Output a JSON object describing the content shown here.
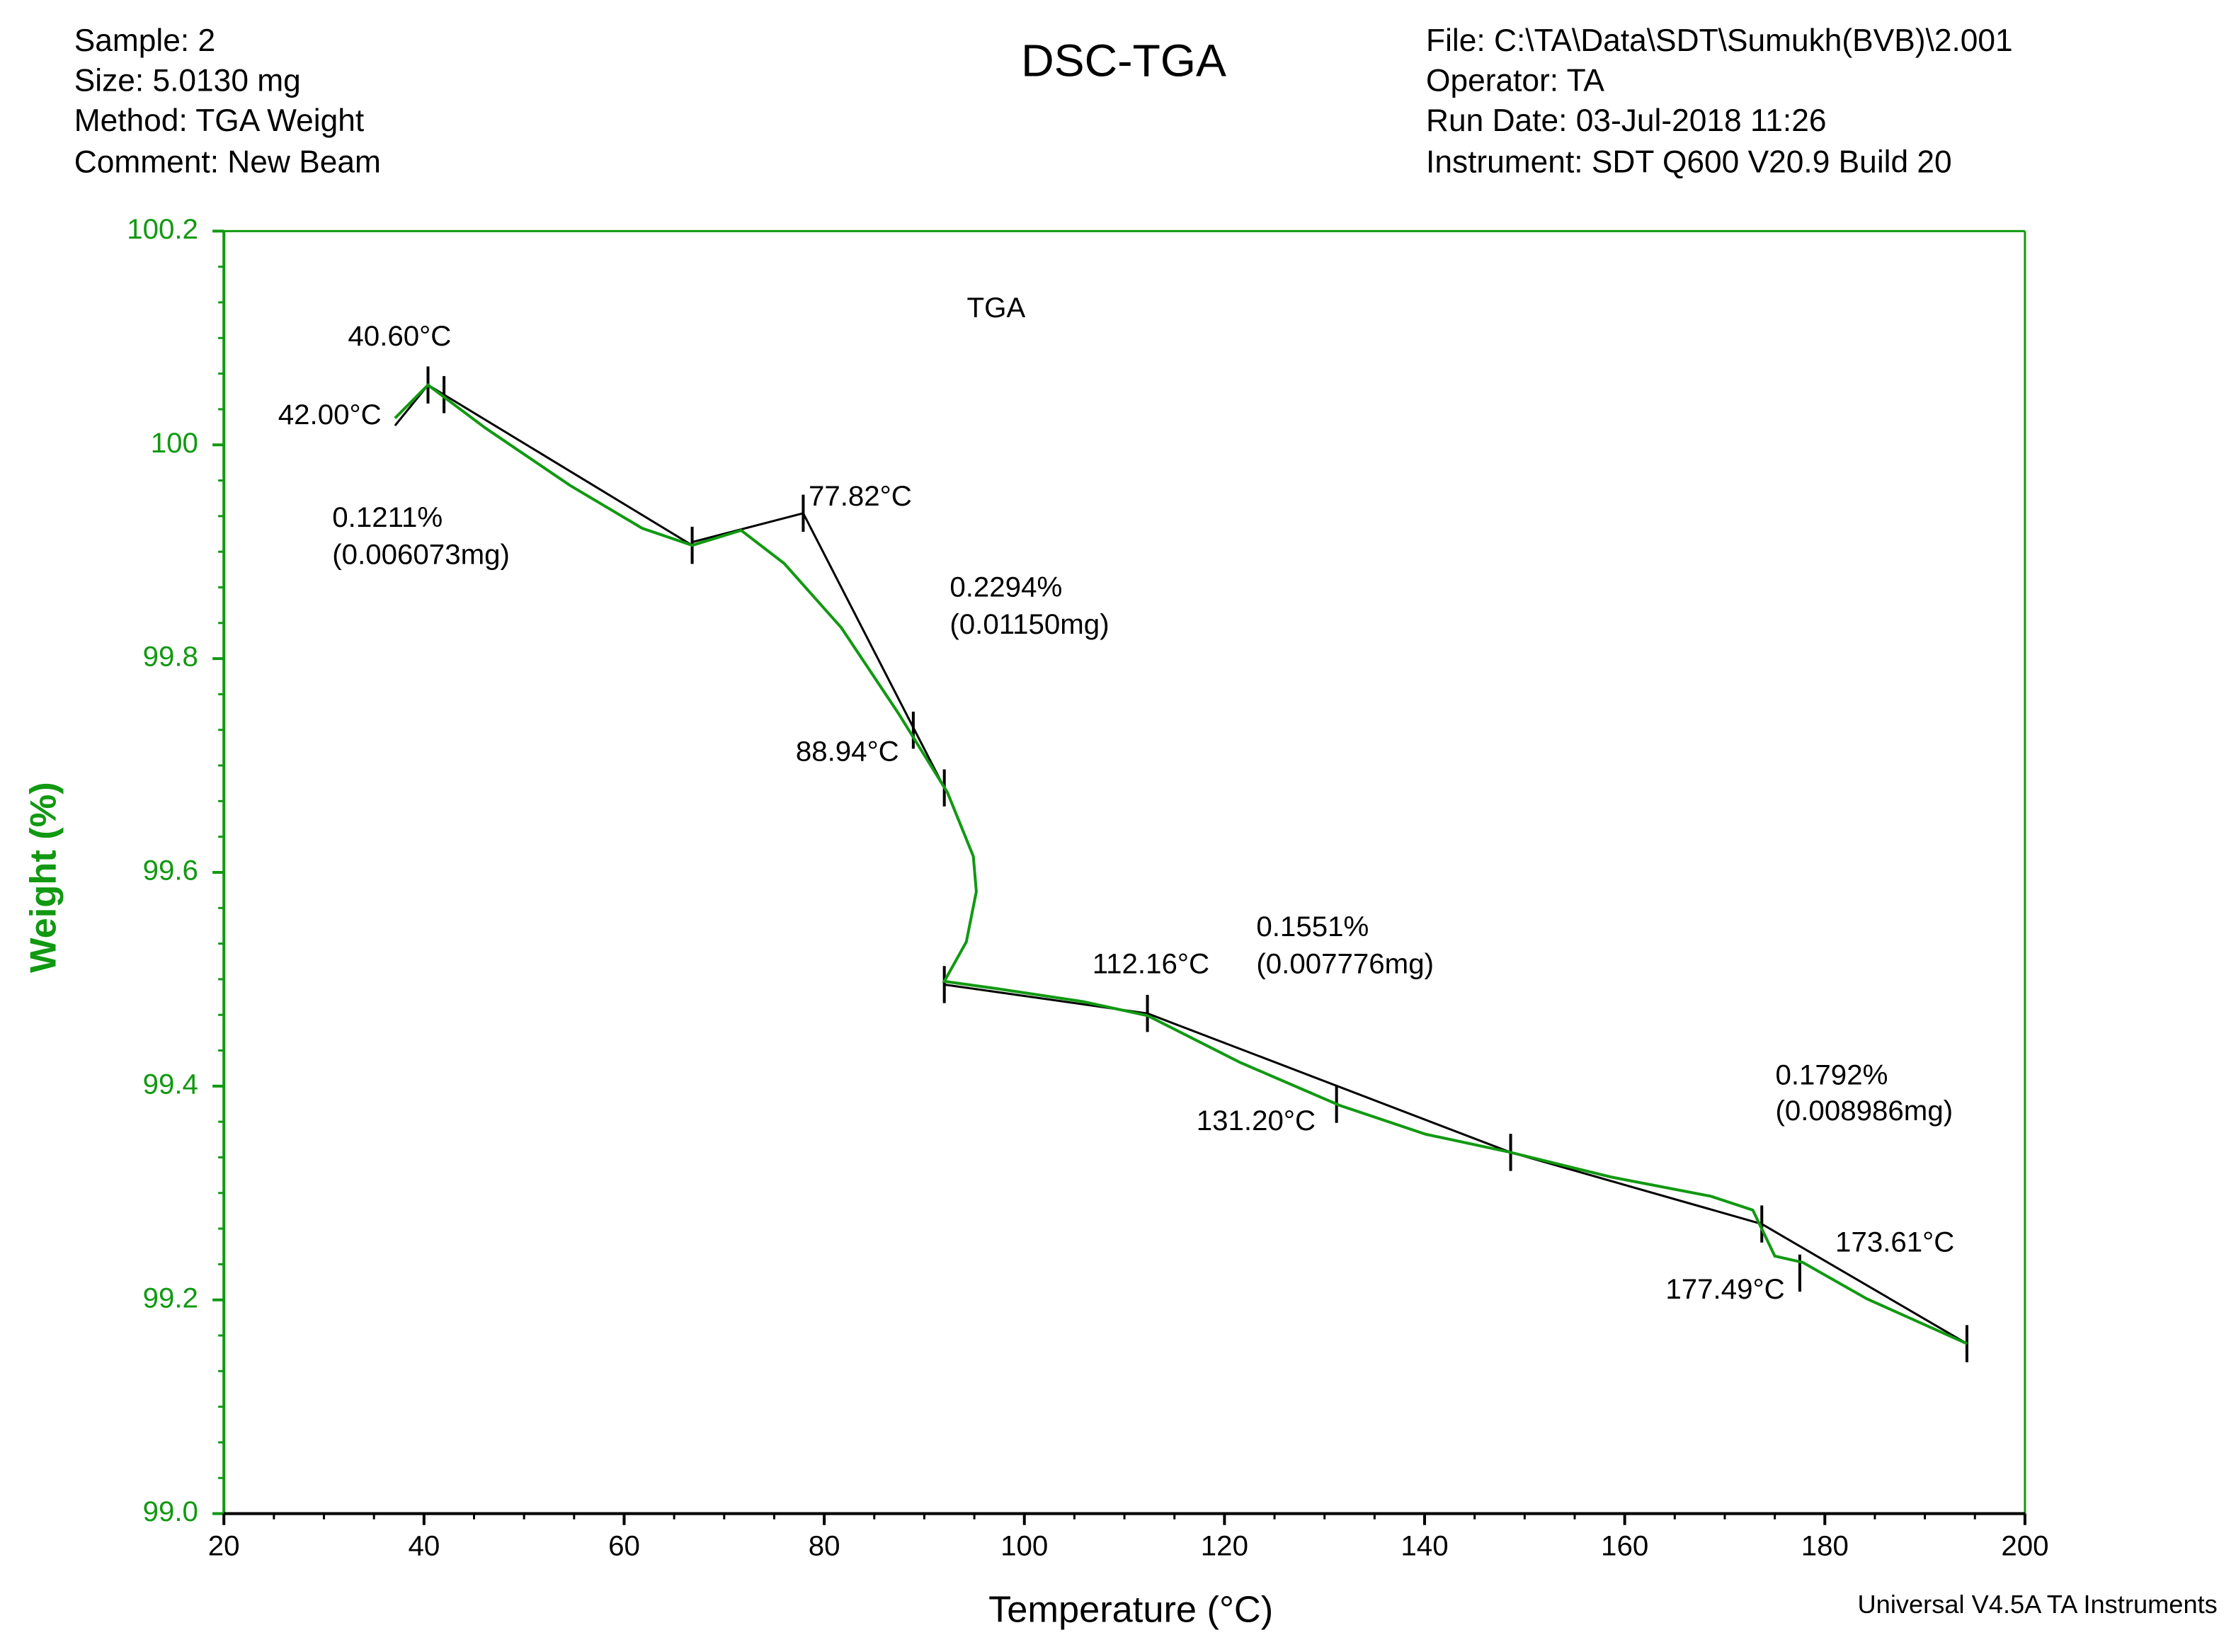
{
  "header": {
    "left": [
      "Sample: 2",
      "Size:  5.0130 mg",
      "Method: TGA Weight",
      "Comment: New Beam"
    ],
    "right": [
      "File: C:\\TA\\Data\\SDT\\Sumukh(BVB)\\2.001",
      "Operator: TA",
      "Run Date: 03-Jul-2018 11:26",
      "Instrument: SDT Q600 V20.9 Build 20"
    ],
    "footer": "Universal V4.5A TA Instruments"
  },
  "chart_data": {
    "type": "line",
    "title": "DSC-TGA",
    "x_label": "Temperature (°C)",
    "y_label": "Weight (%)",
    "xlim": [
      20,
      200
    ],
    "xticks": [
      20,
      40,
      60,
      80,
      100,
      120,
      140,
      160,
      180,
      200
    ],
    "ylim": [
      99.0,
      100.2
    ],
    "yticks": [
      {
        "value": 99.0,
        "label": "99.0"
      },
      99.2,
      99.4,
      99.6,
      99.8,
      100,
      100.2
    ],
    "series": [
      {
        "name": "TGA",
        "color": "#119911",
        "x": [
          37.1,
          40.4,
          46.1,
          54.6,
          61.8,
          66.8,
          71.7,
          76.0,
          81.7,
          87.4,
          92.3,
          94.9,
          95.2,
          94.2,
          92.0,
          97.4,
          105.9,
          112.3,
          121.6,
          131.5,
          140.1,
          148.6,
          158.6,
          168.6,
          172.8,
          175.0,
          177.8,
          184.2,
          194.2
        ],
        "values": [
          100.025,
          100.056,
          100.016,
          99.962,
          99.922,
          99.906,
          99.92,
          99.889,
          99.829,
          99.749,
          99.675,
          99.615,
          99.582,
          99.535,
          99.498,
          99.491,
          99.479,
          99.466,
          99.422,
          99.382,
          99.355,
          99.338,
          99.315,
          99.297,
          99.284,
          99.241,
          99.235,
          99.201,
          99.159
        ]
      }
    ],
    "analysis_lines": [
      [
        [
          40.4,
          100.056
        ],
        [
          66.8,
          99.906
        ]
      ],
      [
        [
          40.4,
          100.056
        ],
        [
          37.1,
          100.018
        ]
      ],
      [
        [
          66.8,
          99.909
        ],
        [
          77.9,
          99.936
        ]
      ],
      [
        [
          77.9,
          99.936
        ],
        [
          92.0,
          99.679
        ]
      ],
      [
        [
          92.0,
          99.495
        ],
        [
          112.3,
          99.468
        ]
      ],
      [
        [
          112.3,
          99.468
        ],
        [
          148.6,
          99.338
        ]
      ],
      [
        [
          148.6,
          99.338
        ],
        [
          173.7,
          99.271
        ]
      ],
      [
        [
          173.7,
          99.271
        ],
        [
          194.2,
          99.159
        ]
      ]
    ],
    "analysis_markers": [
      [
        40.4,
        100.056
      ],
      [
        42.0,
        100.047
      ],
      [
        66.8,
        99.906
      ],
      [
        77.9,
        99.936
      ],
      [
        88.9,
        99.733
      ],
      [
        92.0,
        99.679
      ],
      [
        92.0,
        99.495
      ],
      [
        112.3,
        99.468
      ],
      [
        131.2,
        99.383
      ],
      [
        148.6,
        99.338
      ],
      [
        173.7,
        99.271
      ],
      [
        177.5,
        99.225
      ],
      [
        194.2,
        99.159
      ]
    ],
    "annotations": [
      "40.60°C",
      "42.00°C",
      "0.1211%",
      "(0.006073mg)",
      "77.82°C",
      "0.2294%",
      "(0.01150mg)",
      "88.94°C",
      "112.16°C",
      "0.1551%",
      "(0.007776mg)",
      "131.20°C",
      "0.1792%",
      "(0.008986mg)",
      "173.61°C",
      "177.49°C"
    ]
  }
}
